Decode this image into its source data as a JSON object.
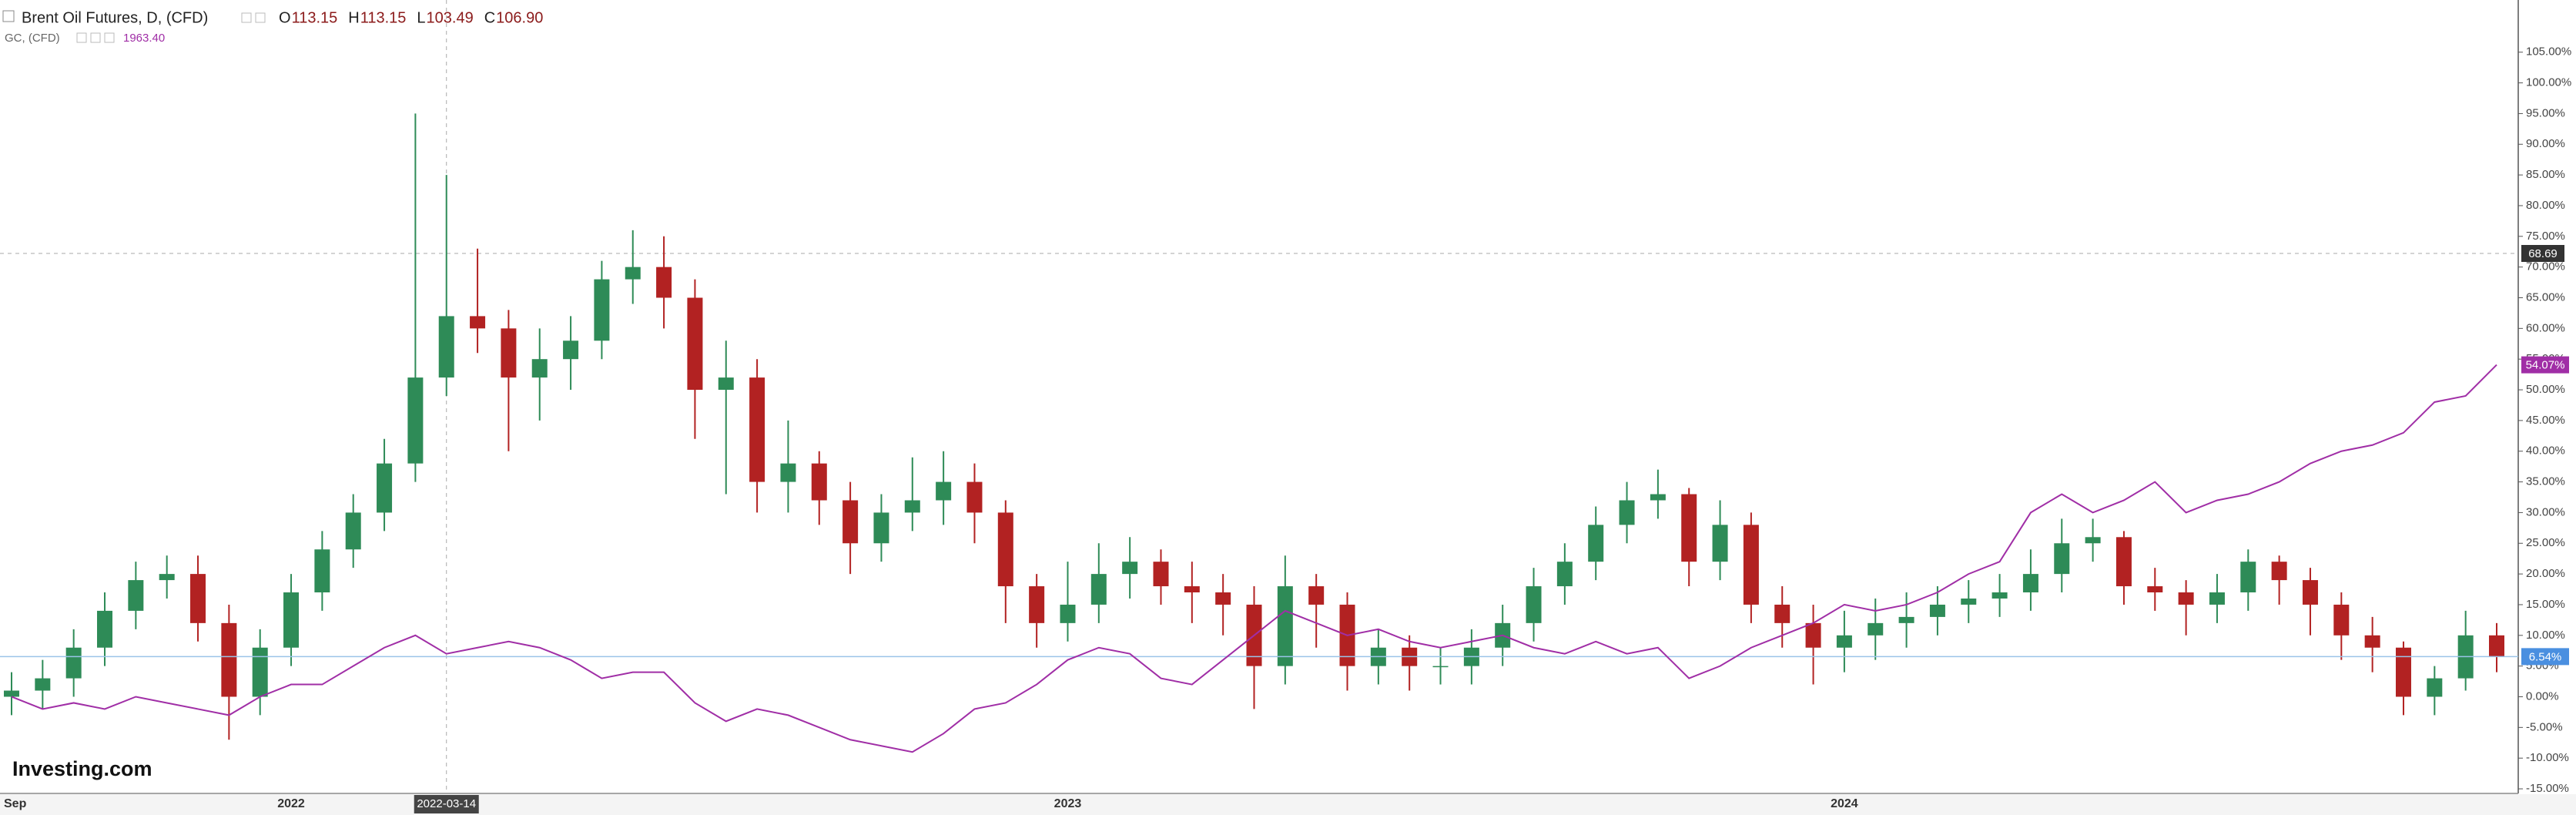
{
  "chart_data": {
    "type": "candlestick",
    "header": {
      "title": "Brent Oil Futures, D, (CFD)",
      "ohlc": [
        {
          "label": "O",
          "value": "113.15"
        },
        {
          "label": "H",
          "value": "113.15"
        },
        {
          "label": "L",
          "value": "103.49"
        },
        {
          "label": "C",
          "value": "106.90"
        }
      ]
    },
    "logo": "Investing.com",
    "crosshair": {
      "date": "2022-03-14",
      "price": "68.69"
    },
    "categories": [
      "Sep",
      null,
      null,
      null,
      null,
      null,
      null,
      null,
      null,
      "2022",
      null,
      null,
      null,
      null,
      "2022-03-14",
      null,
      null,
      null,
      null,
      null,
      null,
      null,
      null,
      null,
      null,
      null,
      null,
      null,
      null,
      null,
      null,
      null,
      null,
      null,
      "2023",
      null,
      null,
      null,
      null,
      null,
      null,
      null,
      null,
      null,
      null,
      null,
      null,
      null,
      null,
      null,
      null,
      null,
      null,
      null,
      null,
      null,
      null,
      null,
      null,
      "2024",
      null,
      null,
      null,
      null,
      null,
      null,
      null,
      null,
      null,
      null,
      null,
      null,
      null,
      null,
      null,
      null,
      null,
      null,
      null,
      null,
      null
    ],
    "series": [
      {
        "name": "Brent Oil Futures, D, (CFD)",
        "up_color": "#2e8b57",
        "down_color": "#b22222",
        "last_label": "6.54%",
        "marker_color": "#4a8fe0",
        "open": [
          0,
          1,
          3,
          8,
          14,
          19,
          20,
          12,
          0,
          8,
          17,
          24,
          30,
          38,
          52,
          62,
          60,
          52,
          55,
          58,
          68,
          70,
          65,
          50,
          52,
          35,
          38,
          32,
          25,
          30,
          32,
          35,
          30,
          18,
          12,
          15,
          20,
          22,
          18,
          17,
          15,
          5,
          18,
          15,
          5,
          8,
          5,
          5,
          8,
          12,
          18,
          22,
          28,
          32,
          33,
          22,
          28,
          15,
          12,
          8,
          10,
          12,
          13,
          15,
          16,
          17,
          20,
          25,
          26,
          18,
          17,
          15,
          17,
          22,
          19,
          15,
          10,
          8,
          0,
          3,
          10
        ],
        "high": [
          4,
          6,
          11,
          17,
          22,
          23,
          23,
          15,
          11,
          20,
          27,
          33,
          42,
          95,
          85,
          73,
          63,
          60,
          62,
          71,
          76,
          75,
          68,
          58,
          55,
          45,
          40,
          35,
          33,
          39,
          40,
          38,
          32,
          20,
          22,
          25,
          26,
          24,
          22,
          20,
          18,
          23,
          20,
          17,
          11,
          10,
          8,
          11,
          15,
          21,
          25,
          31,
          35,
          37,
          34,
          32,
          30,
          18,
          15,
          14,
          16,
          17,
          18,
          19,
          20,
          24,
          29,
          29,
          27,
          21,
          19,
          20,
          24,
          23,
          21,
          17,
          13,
          9,
          5,
          14,
          12
        ],
        "low": [
          -3,
          -2,
          0,
          5,
          11,
          16,
          9,
          -7,
          -3,
          5,
          14,
          21,
          27,
          35,
          49,
          56,
          40,
          45,
          50,
          55,
          64,
          60,
          42,
          33,
          30,
          30,
          28,
          20,
          22,
          27,
          28,
          25,
          12,
          8,
          9,
          12,
          16,
          15,
          12,
          10,
          -2,
          2,
          8,
          1,
          2,
          1,
          2,
          2,
          5,
          9,
          15,
          19,
          25,
          29,
          18,
          19,
          12,
          8,
          2,
          4,
          6,
          8,
          10,
          12,
          13,
          14,
          17,
          22,
          15,
          14,
          10,
          12,
          14,
          15,
          10,
          6,
          4,
          -3,
          -3,
          1,
          4
        ],
        "close": [
          1,
          3,
          8,
          14,
          19,
          20,
          12,
          0,
          8,
          17,
          24,
          30,
          38,
          52,
          62,
          60,
          52,
          55,
          58,
          68,
          70,
          65,
          50,
          52,
          35,
          38,
          32,
          25,
          30,
          32,
          35,
          30,
          18,
          12,
          15,
          20,
          22,
          18,
          17,
          15,
          5,
          18,
          15,
          5,
          8,
          5,
          5,
          8,
          12,
          18,
          22,
          28,
          32,
          33,
          22,
          28,
          15,
          12,
          8,
          10,
          12,
          13,
          15,
          16,
          17,
          20,
          25,
          26,
          18,
          17,
          15,
          17,
          22,
          19,
          15,
          10,
          8,
          0,
          3,
          10,
          6.54
        ]
      },
      {
        "name": "GC, (CFD)",
        "type": "line",
        "color": "#a02ea6",
        "price_label": "1963.40",
        "last_label": "54.07%",
        "values": [
          0,
          -2,
          -1,
          -2,
          0,
          -1,
          -2,
          -3,
          0,
          2,
          2,
          5,
          8,
          10,
          7,
          8,
          9,
          8,
          6,
          3,
          4,
          4,
          -1,
          -4,
          -2,
          -3,
          -5,
          -7,
          -8,
          -9,
          -6,
          -2,
          -1,
          2,
          6,
          8,
          7,
          3,
          2,
          6,
          10,
          14,
          12,
          10,
          11,
          9,
          8,
          9,
          10,
          8,
          7,
          9,
          7,
          8,
          3,
          5,
          8,
          10,
          12,
          15,
          14,
          15,
          17,
          20,
          22,
          30,
          33,
          30,
          32,
          35,
          30,
          32,
          33,
          35,
          38,
          40,
          41,
          43,
          48,
          49,
          54.07
        ]
      }
    ],
    "ylim": [
      -15.75,
      113.5
    ],
    "yticks": [
      {
        "value": -15,
        "label": "-15.00%"
      },
      {
        "value": -10,
        "label": "-10.00%"
      },
      {
        "value": -5,
        "label": "-5.00%"
      },
      {
        "value": 0,
        "label": "0.00%"
      },
      {
        "value": 5,
        "label": "5.00%"
      },
      {
        "value": 10,
        "label": "10.00%"
      },
      {
        "value": 15,
        "label": "15.00%"
      },
      {
        "value": 20,
        "label": "20.00%"
      },
      {
        "value": 25,
        "label": "25.00%"
      },
      {
        "value": 30,
        "label": "30.00%"
      },
      {
        "value": 35,
        "label": "35.00%"
      },
      {
        "value": 40,
        "label": "40.00%"
      },
      {
        "value": 45,
        "label": "45.00%"
      },
      {
        "value": 50,
        "label": "50.00%"
      },
      {
        "value": 55,
        "label": "55.00%"
      },
      {
        "value": 60,
        "label": "60.00%"
      },
      {
        "value": 65,
        "label": "65.00%"
      },
      {
        "value": 70,
        "label": "70.00%"
      },
      {
        "value": 75,
        "label": "75.00%"
      },
      {
        "value": 80,
        "label": "80.00%"
      },
      {
        "value": 85,
        "label": "85.00%"
      },
      {
        "value": 90,
        "label": "90.00%"
      },
      {
        "value": 95,
        "label": "95.00%"
      },
      {
        "value": 100,
        "label": "100.00%"
      },
      {
        "value": 105,
        "label": "105.00%"
      }
    ],
    "grid": false
  }
}
